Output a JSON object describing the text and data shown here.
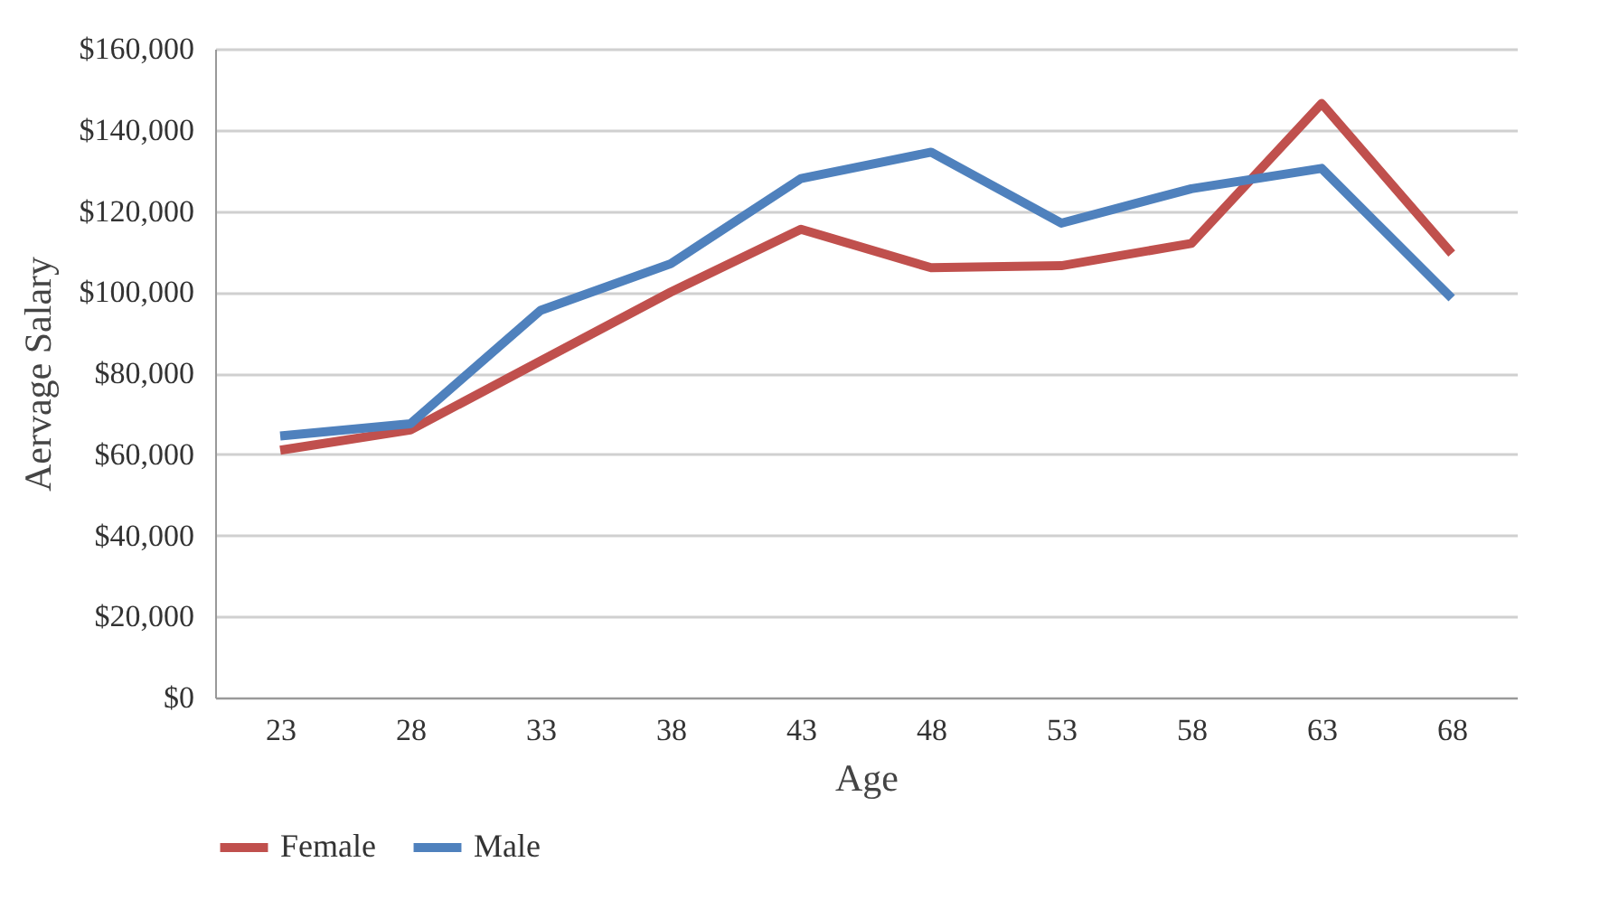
{
  "chart_data": {
    "type": "line",
    "xlabel": "Age",
    "ylabel": "Aervage Salary",
    "categories": [
      "23",
      "28",
      "33",
      "38",
      "43",
      "48",
      "53",
      "58",
      "63",
      "68"
    ],
    "series": [
      {
        "name": "Female",
        "color": "#c0504d",
        "values": [
          61000,
          66000,
          83000,
          100000,
          115500,
          106000,
          106500,
          112000,
          146500,
          109500
        ]
      },
      {
        "name": "Male",
        "color": "#4f81bd",
        "values": [
          64500,
          67500,
          95500,
          107000,
          128000,
          134500,
          117000,
          125500,
          130500,
          98500
        ]
      }
    ],
    "ylim": [
      0,
      160000
    ],
    "yticks": [
      {
        "value": 0,
        "label": "$0"
      },
      {
        "value": 20000,
        "label": "$20,000"
      },
      {
        "value": 40000,
        "label": "$40,000"
      },
      {
        "value": 60000,
        "label": "$60,000"
      },
      {
        "value": 80000,
        "label": "$80,000"
      },
      {
        "value": 100000,
        "label": "$100,000"
      },
      {
        "value": 120000,
        "label": "$120,000"
      },
      {
        "value": 140000,
        "label": "$140,000"
      },
      {
        "value": 160000,
        "label": "$160,000"
      }
    ],
    "grid": "y",
    "legend": "bottom",
    "marker": "none",
    "line_style": "solid"
  }
}
